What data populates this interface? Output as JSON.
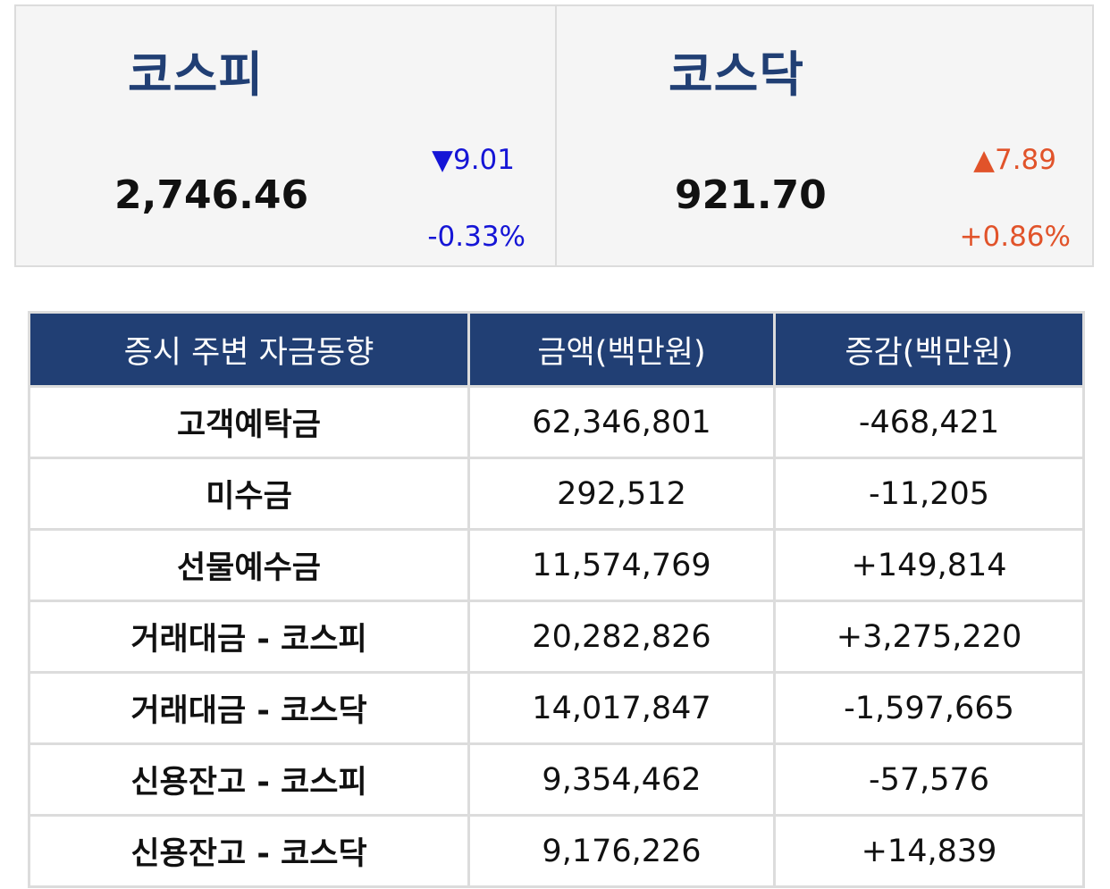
{
  "kospi": {
    "name": "코스피",
    "value": "2,746.46",
    "change": "▼9.01",
    "pct": "-0.33%",
    "direction": "down"
  },
  "kosdaq": {
    "name": "코스닥",
    "value": "921.70",
    "change": "▲7.89",
    "pct": "+0.86%",
    "direction": "up"
  },
  "colors": {
    "header_bg": "#213f74",
    "down": "#1515d6",
    "up": "#e1532a"
  },
  "table": {
    "headers": [
      "증시 주변 자금동향",
      "금액(백만원)",
      "증감(백만원)"
    ],
    "rows": [
      {
        "item": "고객예탁금",
        "amount": "62,346,801",
        "change": "-468,421",
        "direction": "down"
      },
      {
        "item": "미수금",
        "amount": "292,512",
        "change": "-11,205",
        "direction": "down"
      },
      {
        "item": "선물예수금",
        "amount": "11,574,769",
        "change": "+149,814",
        "direction": "up"
      },
      {
        "item": "거래대금 - 코스피",
        "amount": "20,282,826",
        "change": "+3,275,220",
        "direction": "up"
      },
      {
        "item": "거래대금 - 코스닥",
        "amount": "14,017,847",
        "change": "-1,597,665",
        "direction": "down"
      },
      {
        "item": "신용잔고 - 코스피",
        "amount": "9,354,462",
        "change": "-57,576",
        "direction": "down"
      },
      {
        "item": "신용잔고 - 코스닥",
        "amount": "9,176,226",
        "change": "+14,839",
        "direction": "up"
      }
    ]
  }
}
